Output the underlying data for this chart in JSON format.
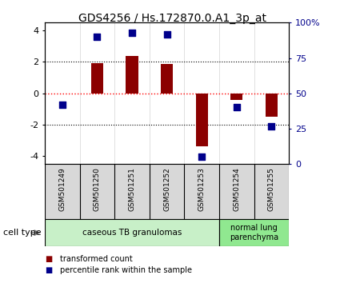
{
  "title": "GDS4256 / Hs.172870.0.A1_3p_at",
  "samples": [
    "GSM501249",
    "GSM501250",
    "GSM501251",
    "GSM501252",
    "GSM501253",
    "GSM501254",
    "GSM501255"
  ],
  "bar_values": [
    0.0,
    1.9,
    2.4,
    1.85,
    -3.35,
    -0.4,
    -1.5
  ],
  "dot_values": [
    -0.72,
    3.6,
    3.85,
    3.75,
    -4.05,
    -0.85,
    -2.1
  ],
  "ylim": [
    -4.5,
    4.5
  ],
  "yticks_left": [
    -4,
    -2,
    0,
    2,
    4
  ],
  "yticks_right": [
    0,
    25,
    50,
    75,
    100
  ],
  "bar_color": "#8B0000",
  "dot_color": "#00008B",
  "hline_color": "red",
  "group1_label": "caseous TB granulomas",
  "group2_label": "normal lung\nparenchyma",
  "group1_indices": [
    0,
    1,
    2,
    3,
    4
  ],
  "group2_indices": [
    5,
    6
  ],
  "group1_color": "#c8f0c8",
  "group2_color": "#90e890",
  "cell_type_label": "cell type",
  "legend1": "transformed count",
  "legend2": "percentile rank within the sample",
  "bar_width": 0.35,
  "dot_size": 30,
  "title_fontsize": 10,
  "tick_fontsize": 8,
  "label_fontsize": 7.5
}
